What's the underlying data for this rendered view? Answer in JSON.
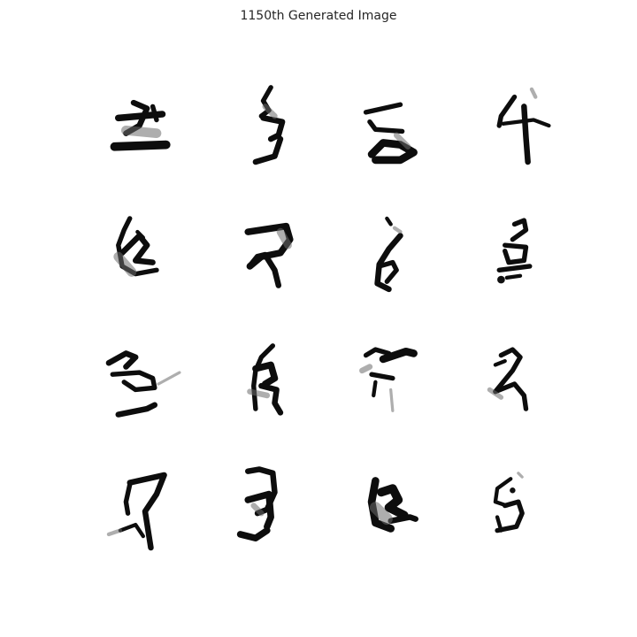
{
  "figure": {
    "title": "1150th Generated Image"
  },
  "grid": {
    "rows": 4,
    "cols": 4,
    "tiles": [
      {
        "icon": "generated-glyph-image"
      },
      {
        "icon": "generated-glyph-image"
      },
      {
        "icon": "generated-glyph-image"
      },
      {
        "icon": "generated-glyph-image"
      },
      {
        "icon": "generated-glyph-image"
      },
      {
        "icon": "generated-glyph-image"
      },
      {
        "icon": "generated-glyph-image"
      },
      {
        "icon": "generated-glyph-image"
      },
      {
        "icon": "generated-glyph-image"
      },
      {
        "icon": "generated-glyph-image"
      },
      {
        "icon": "generated-glyph-image"
      },
      {
        "icon": "generated-glyph-image"
      },
      {
        "icon": "generated-glyph-image"
      },
      {
        "icon": "generated-glyph-image"
      },
      {
        "icon": "generated-glyph-image"
      },
      {
        "icon": "generated-glyph-image"
      }
    ]
  },
  "colors": {
    "background": "#ffffff",
    "ink": "#0d0d0d",
    "title_text": "#262626"
  }
}
